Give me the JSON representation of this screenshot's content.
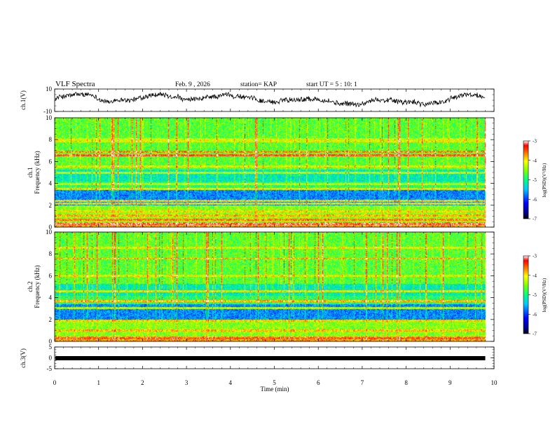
{
  "header": {
    "title": "VLF Spectra",
    "date": "Feb. 9 , 2026",
    "station": "station= KAP",
    "start": "start  UT =   5 : 10: 1"
  },
  "chart_data": [
    {
      "type": "line",
      "name": "ch1 waveform",
      "ylabel": "ch.1(V)",
      "ylim": [
        -10,
        10
      ],
      "yticks": [
        "10",
        "-10"
      ],
      "xlim": [
        0,
        10
      ],
      "data_end_min": 9.8
    },
    {
      "type": "heatmap",
      "name": "ch1 spectrogram",
      "ylabel": "ch.1\nFrequency (kHz)",
      "ylabel_line1": "ch.1",
      "ylabel_line2": "Frequency (kHz)",
      "ylim": [
        0,
        10
      ],
      "yticks": [
        "0",
        "2",
        "4",
        "6",
        "8",
        "10"
      ],
      "xlim": [
        0,
        10
      ],
      "colorbar": {
        "label": "log(PSD)(V²/Hz)",
        "range": [
          -7,
          -3
        ],
        "ticks": [
          "-3",
          "-4",
          "-5",
          "-6",
          "-7"
        ]
      },
      "bands": [
        {
          "f": 0.3,
          "level": 0.95
        },
        {
          "f": 0.7,
          "level": 0.85
        },
        {
          "f": 1.1,
          "level": 0.8
        },
        {
          "f": 1.5,
          "level": 0.75
        },
        {
          "f": 2.2,
          "level": 0.78
        },
        {
          "f": 2.45,
          "level": 0.8
        },
        {
          "f": 3.5,
          "level": 0.72
        },
        {
          "f": 4.0,
          "level": 0.7
        },
        {
          "f": 5.0,
          "level": 0.7
        },
        {
          "f": 5.6,
          "level": 0.72
        },
        {
          "f": 6.6,
          "level": 0.92
        },
        {
          "f": 6.9,
          "level": 0.85
        },
        {
          "f": 7.9,
          "level": 0.72
        },
        {
          "f": 8.1,
          "level": 0.7
        }
      ]
    },
    {
      "type": "heatmap",
      "name": "ch2 spectrogram",
      "ylabel": "ch.2\nFrequency (kHz)",
      "ylabel_line1": "ch.2",
      "ylabel_line2": "Frequency (kHz)",
      "ylim": [
        0,
        10
      ],
      "yticks": [
        "0",
        "2",
        "4",
        "6",
        "8",
        "10"
      ],
      "xlim": [
        0,
        10
      ],
      "colorbar": {
        "label": "log(PSD)(V²/Hz)",
        "range": [
          -7,
          -3
        ],
        "ticks": [
          "-3",
          "-4",
          "-5",
          "-6",
          "-7"
        ]
      },
      "bands": [
        {
          "f": 0.3,
          "level": 0.9
        },
        {
          "f": 1.0,
          "level": 0.78
        },
        {
          "f": 1.9,
          "level": 0.75
        },
        {
          "f": 3.1,
          "level": 0.7
        },
        {
          "f": 3.7,
          "level": 0.8
        },
        {
          "f": 4.6,
          "level": 0.72
        },
        {
          "f": 6.0,
          "level": 0.72
        },
        {
          "f": 7.6,
          "level": 0.8
        },
        {
          "f": 8.6,
          "level": 0.72
        }
      ]
    },
    {
      "type": "line",
      "name": "ch3 waveform",
      "ylabel": "ch.3(V)",
      "ylim": [
        -5,
        5
      ],
      "yticks": [
        "5",
        "0",
        "-5"
      ],
      "xlim": [
        0,
        10
      ],
      "band_value": 0,
      "data_end_min": 9.8
    }
  ],
  "xaxis": {
    "label": "Time  (min)",
    "ticks": [
      "0",
      "1",
      "2",
      "3",
      "4",
      "5",
      "6",
      "7",
      "8",
      "9",
      "10"
    ]
  }
}
